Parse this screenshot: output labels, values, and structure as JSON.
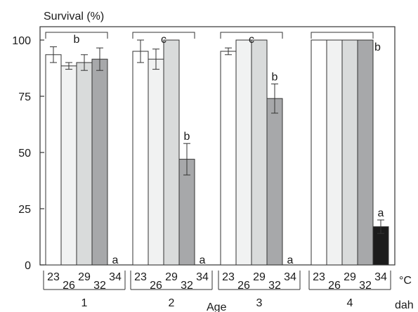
{
  "chart_data": {
    "type": "bar",
    "ylabel": "Survival (%)",
    "xlabel": "Age",
    "ylim": [
      0,
      100
    ],
    "yticks": [
      0,
      25,
      50,
      75,
      100
    ],
    "group_unit": "dah",
    "temperature_unit": "°C",
    "groups": [
      "1",
      "2",
      "3",
      "4"
    ],
    "temperatures": [
      "23",
      "26",
      "29",
      "32",
      "34"
    ],
    "series_colors": [
      "#ffffff",
      "#f1f2f2",
      "#d9dbdb",
      "#a7a8aa",
      "#1b1b1b"
    ],
    "series": [
      {
        "temperature": "23",
        "values": [
          93.5,
          95,
          95,
          100
        ],
        "errors": [
          3.5,
          5,
          1.5,
          0
        ]
      },
      {
        "temperature": "26",
        "values": [
          88.5,
          91.5,
          100,
          100
        ],
        "errors": [
          1.5,
          4.5,
          0,
          0
        ]
      },
      {
        "temperature": "29",
        "values": [
          90,
          100,
          100,
          100
        ],
        "errors": [
          3.5,
          0,
          0,
          0
        ]
      },
      {
        "temperature": "32",
        "values": [
          91.5,
          47,
          74,
          100
        ],
        "errors": [
          5,
          7,
          6.5,
          0
        ]
      },
      {
        "temperature": "34",
        "values": [
          0,
          0,
          0,
          17
        ],
        "errors": [
          0,
          0,
          0,
          3
        ]
      }
    ],
    "annotations": [
      {
        "group": 0,
        "text": "b",
        "type": "bracket"
      },
      {
        "group": 0,
        "text": "a",
        "temperature_index": 4
      },
      {
        "group": 1,
        "text": "c",
        "type": "bracket"
      },
      {
        "group": 1,
        "text": "b",
        "temperature_index": 3
      },
      {
        "group": 1,
        "text": "a",
        "temperature_index": 4
      },
      {
        "group": 2,
        "text": "c",
        "type": "bracket"
      },
      {
        "group": 2,
        "text": "b",
        "temperature_index": 3
      },
      {
        "group": 2,
        "text": "a",
        "temperature_index": 4
      },
      {
        "group": 3,
        "text": "b",
        "type": "bracket"
      },
      {
        "group": 3,
        "text": "a",
        "temperature_index": 4
      }
    ]
  }
}
